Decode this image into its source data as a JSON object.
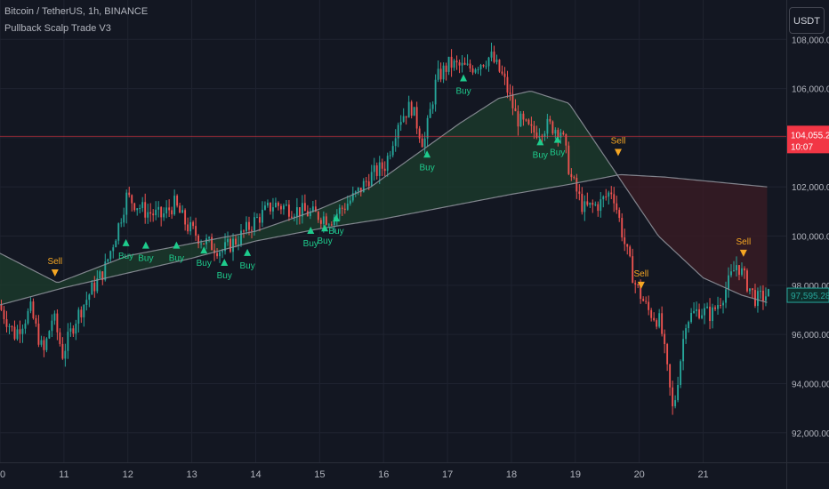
{
  "header": {
    "title": "Bitcoin / TetherUS, 1h, BINANCE",
    "indicator": "Pullback Scalp Trade V3"
  },
  "currency_button": {
    "label": "USDT"
  },
  "colors": {
    "background": "#131722",
    "grid": "#1f2330",
    "up": "#26a69a",
    "down": "#ef5350",
    "buy": "#1ecb8c",
    "sell": "#f5a623",
    "ma_line": "#8d9099",
    "bull_fill": "#1b3b2c",
    "bear_fill": "#3a1c24",
    "last_price_box": "#f23645",
    "current_price_box": "#0e2e2c",
    "current_price_text": "#26a69a"
  },
  "chart_data": {
    "type": "candlestick",
    "x_tick_labels": [
      "10",
      "11",
      "12",
      "13",
      "14",
      "15",
      "16",
      "17",
      "18",
      "19",
      "20",
      "21"
    ],
    "y_tick_labels": [
      "92,000.00",
      "94,000.00",
      "96,000.00",
      "98,000.00",
      "100,000.00",
      "102,000.00",
      "104,000.00",
      "106,000.00",
      "108,000.00"
    ],
    "ylim": [
      90800,
      109600
    ],
    "xlim": [
      10,
      22.3
    ],
    "grid": true,
    "price_path_daily": [
      [
        10.0,
        97200
      ],
      [
        10.25,
        96000
      ],
      [
        10.5,
        97000
      ],
      [
        10.7,
        95200
      ],
      [
        10.85,
        96800
      ],
      [
        11.0,
        95200
      ],
      [
        11.2,
        96600
      ],
      [
        11.45,
        97800
      ],
      [
        11.65,
        98600
      ],
      [
        11.85,
        100200
      ],
      [
        12.0,
        101600
      ],
      [
        12.3,
        101000
      ],
      [
        12.55,
        100800
      ],
      [
        12.75,
        101300
      ],
      [
        12.95,
        100400
      ],
      [
        13.2,
        99800
      ],
      [
        13.5,
        99400
      ],
      [
        13.75,
        99900
      ],
      [
        14.0,
        100600
      ],
      [
        14.3,
        101300
      ],
      [
        14.6,
        101100
      ],
      [
        14.9,
        100900
      ],
      [
        15.2,
        100700
      ],
      [
        15.4,
        101200
      ],
      [
        15.6,
        101700
      ],
      [
        15.8,
        102400
      ],
      [
        16.05,
        102900
      ],
      [
        16.25,
        104700
      ],
      [
        16.45,
        105300
      ],
      [
        16.65,
        103700
      ],
      [
        16.85,
        106400
      ],
      [
        17.05,
        107000
      ],
      [
        17.35,
        106800
      ],
      [
        17.7,
        107300
      ],
      [
        17.9,
        106400
      ],
      [
        18.1,
        104800
      ],
      [
        18.35,
        104200
      ],
      [
        18.6,
        104500
      ],
      [
        18.8,
        104300
      ],
      [
        18.95,
        102400
      ],
      [
        19.15,
        101100
      ],
      [
        19.4,
        101300
      ],
      [
        19.6,
        101900
      ],
      [
        19.8,
        99600
      ],
      [
        19.95,
        98100
      ],
      [
        20.15,
        97000
      ],
      [
        20.35,
        96500
      ],
      [
        20.55,
        92800
      ],
      [
        20.75,
        96600
      ],
      [
        20.95,
        97000
      ],
      [
        21.15,
        96800
      ],
      [
        21.35,
        97700
      ],
      [
        21.55,
        98900
      ],
      [
        21.7,
        98100
      ],
      [
        21.85,
        97400
      ],
      [
        22.0,
        97600
      ]
    ],
    "current_price": 97595.28,
    "last_price_label": "104,055.20",
    "last_price_value": 104055.2,
    "last_price_countdown": "10:07",
    "current_price_label": "97,595.28",
    "moving_averages": [
      {
        "points": [
          [
            10.0,
            99300
          ],
          [
            10.9,
            98100
          ],
          [
            11.5,
            98700
          ],
          [
            12.0,
            99200
          ],
          [
            13.0,
            99700
          ],
          [
            14.0,
            100200
          ],
          [
            15.0,
            101100
          ],
          [
            15.8,
            102000
          ],
          [
            16.5,
            103300
          ],
          [
            17.2,
            104600
          ],
          [
            17.8,
            105600
          ],
          [
            18.3,
            105900
          ],
          [
            18.9,
            105400
          ],
          [
            19.6,
            102700
          ],
          [
            20.3,
            100000
          ],
          [
            21.0,
            98300
          ],
          [
            21.6,
            97600
          ],
          [
            22.0,
            97300
          ]
        ]
      },
      {
        "points": [
          [
            10.0,
            97200
          ],
          [
            11.0,
            97900
          ],
          [
            12.0,
            98500
          ],
          [
            13.0,
            99100
          ],
          [
            14.0,
            99800
          ],
          [
            15.0,
            100300
          ],
          [
            16.0,
            100700
          ],
          [
            17.0,
            101200
          ],
          [
            18.0,
            101700
          ],
          [
            18.9,
            102100
          ],
          [
            19.7,
            102500
          ],
          [
            20.4,
            102400
          ],
          [
            21.2,
            102200
          ],
          [
            22.0,
            102000
          ]
        ]
      }
    ],
    "signals": [
      {
        "type": "sell",
        "label": "Sell",
        "x": 10.86,
        "y": 98500
      },
      {
        "type": "buy",
        "label": "Buy",
        "x": 11.97,
        "y": 99700
      },
      {
        "type": "buy",
        "label": "Buy",
        "x": 12.28,
        "y": 99600
      },
      {
        "type": "buy",
        "label": "Buy",
        "x": 12.76,
        "y": 99600
      },
      {
        "type": "buy",
        "label": "Buy",
        "x": 13.19,
        "y": 99400
      },
      {
        "type": "buy",
        "label": "Buy",
        "x": 13.51,
        "y": 98900
      },
      {
        "type": "buy",
        "label": "Buy",
        "x": 13.87,
        "y": 99300
      },
      {
        "type": "buy",
        "label": "Buy",
        "x": 14.86,
        "y": 100200
      },
      {
        "type": "buy",
        "label": "Buy",
        "x": 15.08,
        "y": 100300
      },
      {
        "type": "buy",
        "label": "Buy",
        "x": 15.26,
        "y": 100700
      },
      {
        "type": "buy",
        "label": "Buy",
        "x": 16.68,
        "y": 103300
      },
      {
        "type": "buy",
        "label": "Buy",
        "x": 17.25,
        "y": 106400
      },
      {
        "type": "buy",
        "label": "Buy",
        "x": 18.45,
        "y": 103800
      },
      {
        "type": "buy",
        "label": "Buy",
        "x": 18.72,
        "y": 103900
      },
      {
        "type": "sell",
        "label": "Sell",
        "x": 19.67,
        "y": 103400
      },
      {
        "type": "sell",
        "label": "Sell",
        "x": 20.03,
        "y": 98000
      },
      {
        "type": "sell",
        "label": "Sell",
        "x": 21.63,
        "y": 99300
      }
    ]
  }
}
